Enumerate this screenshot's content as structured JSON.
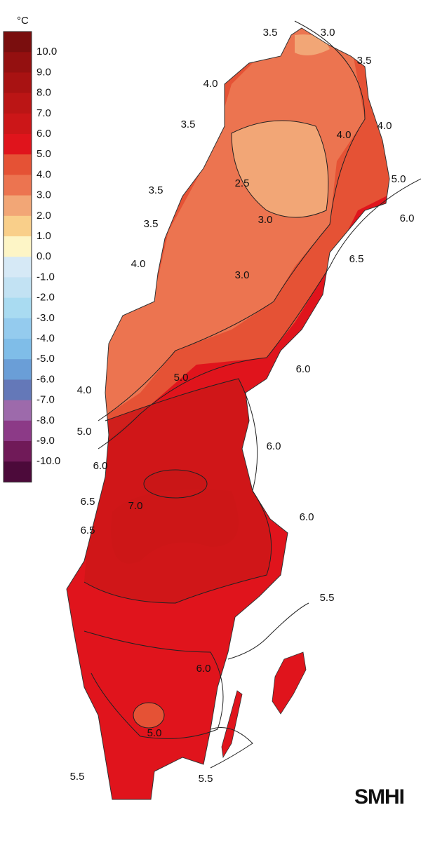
{
  "legend": {
    "unit": "°C",
    "colors": [
      "#7a0e0e",
      "#941010",
      "#a81212",
      "#bb1515",
      "#cc1618",
      "#e0141c",
      "#e55235",
      "#ec7450",
      "#f2a676",
      "#f9cf8a",
      "#fdf5c6",
      "#d6e9f6",
      "#c2e2f3",
      "#a9dbf1",
      "#94cbee",
      "#7fbde8",
      "#6a9ed7",
      "#6478b8",
      "#9d6aab",
      "#8c3a87",
      "#701a58",
      "#4c0a3a"
    ],
    "labels": [
      "10.0",
      "9.0",
      "8.0",
      "7.0",
      "6.0",
      "5.0",
      "4.0",
      "3.0",
      "2.0",
      "1.0",
      "0.0",
      "-1.0",
      "-2.0",
      "-3.0",
      "-4.0",
      "-5.0",
      "-6.0",
      "-7.0",
      "-8.0",
      "-9.0",
      "-10.0"
    ]
  },
  "contour_labels": [
    "3.5",
    "3.0",
    "3.5",
    "4.0",
    "3.5",
    "4.0",
    "4.0",
    "2.5",
    "5.0",
    "3.5",
    "3.0",
    "6.0",
    "3.5",
    "6.5",
    "4.0",
    "3.0",
    "6.0",
    "5.0",
    "4.0",
    "5.0",
    "6.0",
    "6.0",
    "6.5",
    "7.0",
    "6.5",
    "6.0",
    "5.5",
    "6.0",
    "5.0",
    "5.5",
    "5.5"
  ],
  "logo": "SMHI"
}
